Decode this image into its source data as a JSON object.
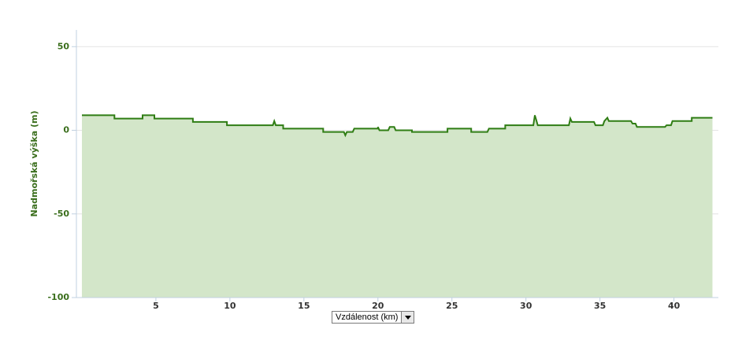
{
  "chart_data": {
    "type": "area",
    "y_label": "Nadmořská výška (m)",
    "x_label": "Vzdálenost (km)",
    "x": [
      0,
      2.2,
      2.2,
      4.1,
      4.1,
      4.9,
      4.9,
      7.5,
      7.5,
      9.8,
      9.8,
      12.9,
      13.0,
      13.1,
      13.6,
      13.6,
      16.3,
      16.3,
      17.7,
      17.8,
      17.9,
      18.3,
      18.4,
      20.0,
      20.0,
      20.1,
      20.7,
      20.8,
      21.1,
      21.2,
      22.3,
      22.3,
      24.7,
      24.7,
      26.3,
      26.3,
      27.4,
      27.5,
      28.6,
      28.6,
      30.5,
      30.6,
      30.7,
      30.8,
      32.9,
      33.0,
      33.1,
      34.6,
      34.7,
      35.2,
      35.3,
      35.5,
      35.6,
      37.1,
      37.2,
      37.4,
      37.5,
      39.4,
      39.5,
      39.8,
      39.9,
      41.2,
      41.2,
      42.6
    ],
    "values": [
      9,
      9,
      7,
      7,
      9,
      9,
      7,
      7,
      5,
      5,
      3,
      3,
      5.5,
      3,
      3,
      1,
      1,
      -1,
      -1,
      -3,
      -1,
      -1,
      1,
      1,
      2,
      0,
      0,
      2,
      2,
      0,
      0,
      -1,
      -1,
      1,
      1,
      -1,
      -1,
      1,
      1,
      3,
      3,
      9,
      6,
      3,
      3,
      7,
      5,
      5,
      3,
      3,
      5.5,
      7.5,
      5.5,
      5.5,
      4,
      4,
      2,
      2,
      3,
      3,
      5.5,
      5.5,
      7.5,
      7.5
    ],
    "color": "#2f7d14",
    "fill_color": "#d3e6c9",
    "xlim": [
      -0.37,
      43
    ],
    "xticks": [
      5,
      10,
      15,
      20,
      25,
      30,
      35,
      40
    ],
    "ylim": [
      -100,
      60
    ],
    "yticks": [
      -100,
      -50,
      0,
      50
    ],
    "grid": true
  }
}
